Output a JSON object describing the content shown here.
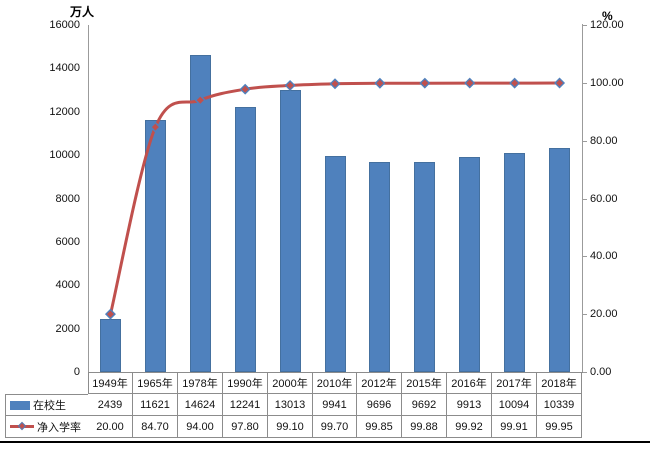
{
  "chart_data": {
    "type": "bar",
    "subtype": "bar-line-combo",
    "categories": [
      "1949年",
      "1965年",
      "1978年",
      "1990年",
      "2000年",
      "2010年",
      "2012年",
      "2015年",
      "2016年",
      "2017年",
      "2018年"
    ],
    "series": [
      {
        "name": "在校生",
        "type": "bar",
        "axis": "left",
        "color": "#4f81bd",
        "values": [
          2439,
          11621,
          14624,
          12241,
          13013,
          9941,
          9696,
          9692,
          9913,
          10094,
          10339
        ],
        "display": [
          "2439",
          "11621",
          "14624",
          "12241",
          "13013",
          "9941",
          "9696",
          "9692",
          "9913",
          "10094",
          "10339"
        ]
      },
      {
        "name": "净入学率",
        "type": "line",
        "axis": "right",
        "color": "#c0504d",
        "marker": "diamond",
        "marker_fill": "#c0504d",
        "marker_border": "#4f81bd",
        "smooth": true,
        "values": [
          20.0,
          84.7,
          94.0,
          97.8,
          99.1,
          99.7,
          99.85,
          99.88,
          99.92,
          99.91,
          99.95
        ],
        "display": [
          "20.00",
          "84.70",
          "94.00",
          "97.80",
          "99.10",
          "99.70",
          "99.85",
          "99.88",
          "99.92",
          "99.91",
          "99.95"
        ]
      }
    ],
    "left_axis": {
      "title": "万人",
      "min": 0,
      "max": 16000,
      "step": 2000,
      "tick_labels": [
        "0",
        "2000",
        "4000",
        "6000",
        "8000",
        "10000",
        "12000",
        "14000",
        "16000"
      ]
    },
    "right_axis": {
      "title": "%",
      "min": 0,
      "max": 120,
      "step": 20,
      "tick_labels": [
        "0.00",
        "20.00",
        "40.00",
        "60.00",
        "80.00",
        "100.00",
        "120.00"
      ]
    },
    "grid": false,
    "legend_position": "data-table-left",
    "data_table": true
  },
  "colors": {
    "bar": "#4f81bd",
    "line": "#c0504d",
    "marker_border": "#4f81bd",
    "axis": "#9b9b9b",
    "table_border": "#8c8c8c",
    "bottom_rule": "#000000"
  }
}
